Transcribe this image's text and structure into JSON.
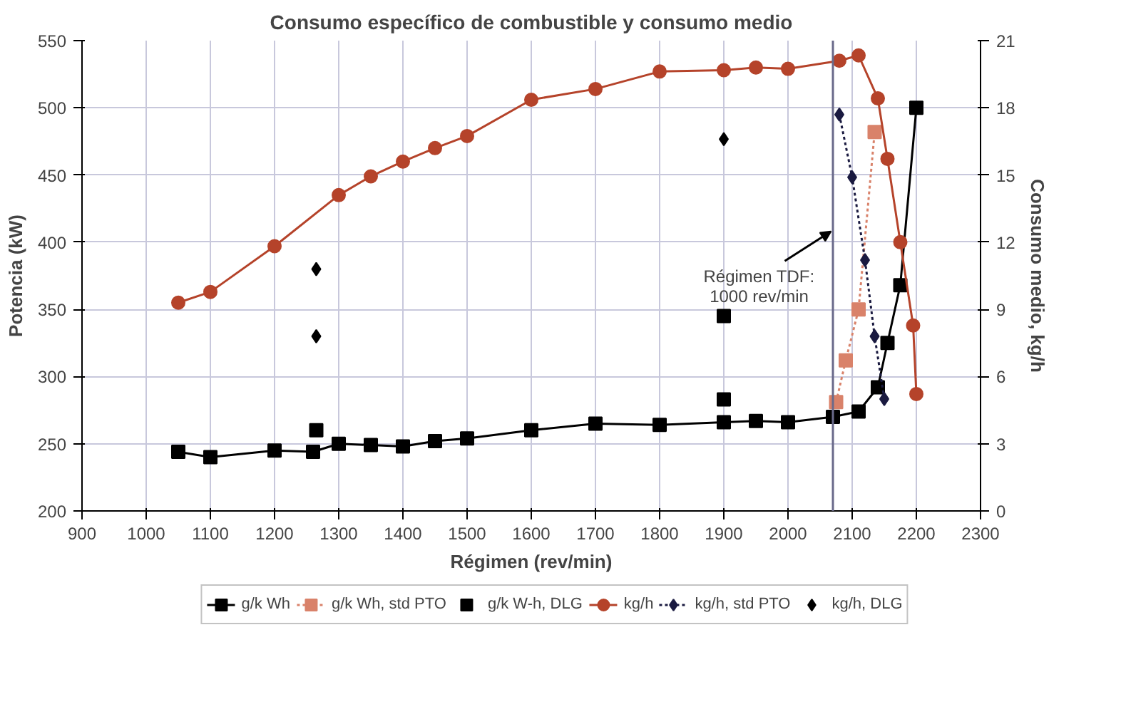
{
  "chart_data": {
    "type": "line",
    "title": "Consumo específico de combustible y consumo medio",
    "xlabel": "Régimen (rev/min)",
    "ylabel": "Potencia (kW)",
    "y2label": "Consumo medio, kg/h",
    "xlim": [
      900,
      2300
    ],
    "xticks": [
      900,
      1000,
      1100,
      1200,
      1300,
      1400,
      1500,
      1600,
      1700,
      1800,
      1900,
      2000,
      2100,
      2200,
      2300
    ],
    "ylim": [
      200,
      550
    ],
    "yticks": [
      200,
      250,
      300,
      350,
      400,
      450,
      500,
      550
    ],
    "y2lim": [
      0,
      21
    ],
    "y2ticks": [
      0,
      3,
      6,
      9,
      12,
      15,
      18,
      21
    ],
    "grid": true,
    "legend": "bottom",
    "ref_lines": [
      {
        "axis": "x",
        "value": 2070,
        "color": "#6a6a8a",
        "line_style": "solid"
      }
    ],
    "annotations": [
      {
        "text": "Régimen TDF:\n1000 rev/min",
        "x": 2070,
        "y": 408
      }
    ],
    "series": [
      {
        "name": "g/k Wh",
        "color": "#000000",
        "marker": "square",
        "line_style": "solid",
        "x": [
          1050,
          1100,
          1200,
          1260,
          1300,
          1350,
          1400,
          1450,
          1500,
          1600,
          1700,
          1800,
          1900,
          1950,
          2000,
          2070,
          2110,
          2140,
          2155,
          2175,
          2200
        ],
        "values": [
          244,
          240,
          245,
          244,
          250,
          249,
          248,
          252,
          254,
          260,
          265,
          264,
          266,
          267,
          266,
          270,
          274,
          292,
          325,
          368,
          500
        ]
      },
      {
        "name": "g/k Wh, std PTO",
        "color": "#d9826a",
        "marker": "square",
        "line_style": "dotted",
        "x": [
          2075,
          2090,
          2110,
          2135
        ],
        "values": [
          281,
          312,
          350,
          482
        ]
      },
      {
        "name": "g/k W-h, DLG",
        "type": "scatter",
        "color": "#000000",
        "marker": "square",
        "x": [
          1265,
          1900,
          1900
        ],
        "values": [
          260,
          345,
          283
        ]
      },
      {
        "name": "kg/h",
        "color": "#b5432a",
        "marker": "circle",
        "line_style": "solid",
        "x": [
          1050,
          1100,
          1200,
          1300,
          1350,
          1400,
          1450,
          1500,
          1600,
          1700,
          1800,
          1900,
          1950,
          2000,
          2080,
          2110,
          2140,
          2155,
          2175,
          2195,
          2200
        ],
        "values": [
          355,
          363,
          397,
          435,
          449,
          460,
          470,
          479,
          506,
          514,
          527,
          528,
          530,
          529,
          535,
          539,
          507,
          462,
          400,
          338,
          287
        ]
      },
      {
        "name": "kg/h, std PTO",
        "axis": "y2",
        "color": "#1a1a40",
        "marker": "diamond",
        "line_style": "dotted",
        "x": [
          2080,
          2100,
          2120,
          2135,
          2150
        ],
        "values": [
          17.7,
          14.9,
          11.2,
          7.8,
          5.0
        ]
      },
      {
        "name": "kg/h, DLG",
        "type": "scatter",
        "axis": "y2",
        "color": "#000000",
        "marker": "diamond",
        "x": [
          1265,
          1265,
          1900
        ],
        "values": [
          10.8,
          7.8,
          16.6
        ]
      }
    ]
  }
}
